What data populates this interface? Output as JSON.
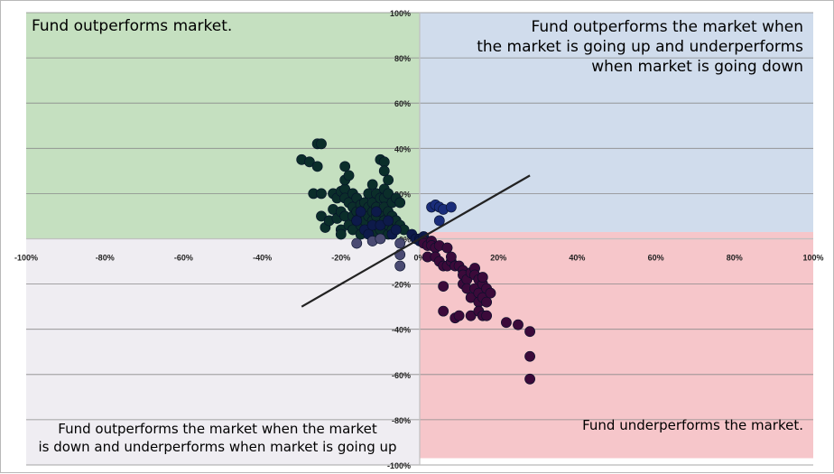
{
  "colors": {
    "top_left": "#c5e0c0",
    "top_right": "#d0dcec",
    "bottom_right": "#f6c6ca",
    "bottom_left": "#efedf2",
    "grid": "#8a8a8a",
    "axis": "#c0c0c0",
    "point_green": "#0b2e2a",
    "point_navy": "#0d1a4a",
    "point_blue": "#1a2d7a",
    "point_purple": "#3b0a3a",
    "point_gray": "#4a4a72",
    "trendline": "#222222"
  },
  "chart_data": {
    "type": "scatter",
    "title": "",
    "xlabel": "",
    "ylabel": "",
    "xlim": [
      -100,
      100
    ],
    "ylim": [
      -100,
      100
    ],
    "x_ticks": [
      -100,
      -80,
      -60,
      -40,
      -20,
      0,
      20,
      40,
      60,
      80,
      100
    ],
    "y_ticks": [
      100,
      80,
      60,
      40,
      20,
      0,
      -20,
      -40,
      -60,
      -80,
      -100
    ],
    "x_tick_labels": [
      "-100%",
      "-80%",
      "-60%",
      "-40%",
      "-20%",
      "0%",
      "20%",
      "40%",
      "60%",
      "80%",
      "100%"
    ],
    "y_tick_labels": [
      "100%",
      "80%",
      "60%",
      "40%",
      "20%",
      "0%",
      "-20%",
      "-40%",
      "-60%",
      "-80%",
      "-100%"
    ],
    "grid": true,
    "quadrants": [
      {
        "x": [
          -100,
          0
        ],
        "y": [
          0,
          100
        ],
        "color": "#c5e0c0",
        "label_lines": [
          "Fund outperforms market."
        ],
        "anchor": "start"
      },
      {
        "x": [
          0,
          100
        ],
        "y": [
          3,
          100
        ],
        "color": "#d0dcec",
        "label_lines": [
          "Fund outperforms the market when",
          "the market is going up and underperforms",
          "when market is going down"
        ],
        "anchor": "end"
      },
      {
        "x": [
          0,
          100
        ],
        "y": [
          -97,
          3
        ],
        "color": "#f6c6ca",
        "label_lines": [
          "Fund underperforms  the market."
        ],
        "anchor": "end"
      },
      {
        "x": [
          -100,
          0
        ],
        "y": [
          -100,
          0
        ],
        "color": "#efedf2",
        "label_lines": [
          "Fund outperforms  the market when the market",
          " is down and underperforms  when market is going up"
        ],
        "anchor": "middle"
      }
    ],
    "trendline": {
      "x": [
        -30,
        28
      ],
      "y": [
        -30,
        28
      ]
    },
    "series": [
      {
        "color": "#0b2e2a",
        "points": [
          [
            -30,
            35
          ],
          [
            -28,
            34
          ],
          [
            -27,
            20
          ],
          [
            -26,
            42
          ],
          [
            -26,
            32
          ],
          [
            -25,
            42
          ],
          [
            -25,
            20
          ],
          [
            -25,
            10
          ],
          [
            -24,
            5
          ],
          [
            -23,
            8
          ],
          [
            -22,
            20
          ],
          [
            -22,
            13
          ],
          [
            -21,
            18
          ],
          [
            -21,
            9
          ],
          [
            -20,
            21
          ],
          [
            -20,
            12
          ],
          [
            -20,
            4
          ],
          [
            -20,
            2
          ],
          [
            -19,
            22
          ],
          [
            -19,
            18
          ],
          [
            -19,
            10
          ],
          [
            -19,
            26
          ],
          [
            -19,
            32
          ],
          [
            -18,
            16
          ],
          [
            -18,
            28
          ],
          [
            -18,
            6
          ],
          [
            -17,
            20
          ],
          [
            -17,
            14
          ],
          [
            -17,
            10
          ],
          [
            -17,
            4
          ],
          [
            -16,
            18
          ],
          [
            -16,
            12
          ],
          [
            -16,
            8
          ],
          [
            -15,
            15
          ],
          [
            -15,
            10
          ],
          [
            -15,
            6
          ],
          [
            -15,
            2
          ],
          [
            -14,
            16
          ],
          [
            -14,
            12
          ],
          [
            -14,
            8
          ],
          [
            -13,
            20
          ],
          [
            -13,
            14
          ],
          [
            -13,
            10
          ],
          [
            -13,
            4
          ],
          [
            -12,
            24
          ],
          [
            -12,
            16
          ],
          [
            -12,
            12
          ],
          [
            -12,
            8
          ],
          [
            -12,
            2
          ],
          [
            -11,
            14
          ],
          [
            -11,
            10
          ],
          [
            -11,
            6
          ],
          [
            -11,
            20
          ],
          [
            -10,
            18
          ],
          [
            -10,
            12
          ],
          [
            -10,
            4
          ],
          [
            -10,
            35
          ],
          [
            -9,
            34
          ],
          [
            -9,
            30
          ],
          [
            -9,
            22
          ],
          [
            -9,
            18
          ],
          [
            -9,
            14
          ],
          [
            -9,
            8
          ],
          [
            -8,
            26
          ],
          [
            -8,
            20
          ],
          [
            -8,
            12
          ],
          [
            -8,
            6
          ],
          [
            -8,
            2
          ],
          [
            -7,
            16
          ],
          [
            -7,
            10
          ],
          [
            -7,
            4
          ],
          [
            -6,
            18
          ],
          [
            -6,
            8
          ],
          [
            -5,
            16
          ],
          [
            -5,
            6
          ],
          [
            -4,
            4
          ]
        ]
      },
      {
        "color": "#0d1a4a",
        "points": [
          [
            -16,
            8
          ],
          [
            -15,
            12
          ],
          [
            -14,
            4
          ],
          [
            -13,
            2
          ],
          [
            -12,
            6
          ],
          [
            -11,
            12
          ],
          [
            -10,
            6
          ],
          [
            -8,
            8
          ],
          [
            -7,
            2
          ],
          [
            -6,
            4
          ],
          [
            -2,
            2
          ],
          [
            -1,
            0
          ],
          [
            0,
            0
          ],
          [
            0,
            -1
          ],
          [
            1,
            1
          ]
        ]
      },
      {
        "color": "#1a2d7a",
        "points": [
          [
            3,
            14
          ],
          [
            4,
            15
          ],
          [
            5,
            14
          ],
          [
            6,
            13
          ],
          [
            8,
            14
          ],
          [
            5,
            8
          ]
        ]
      },
      {
        "color": "#3b0a3a",
        "points": [
          [
            1,
            -1
          ],
          [
            1,
            -2
          ],
          [
            2,
            -3
          ],
          [
            2,
            -8
          ],
          [
            3,
            -1
          ],
          [
            3,
            -3
          ],
          [
            4,
            -4
          ],
          [
            4,
            -8
          ],
          [
            5,
            -10
          ],
          [
            5,
            -3
          ],
          [
            6,
            -12
          ],
          [
            6,
            -21
          ],
          [
            6,
            -32
          ],
          [
            7,
            -12
          ],
          [
            7,
            -4
          ],
          [
            8,
            -10
          ],
          [
            8,
            -8
          ],
          [
            9,
            -12
          ],
          [
            9,
            -35
          ],
          [
            10,
            -34
          ],
          [
            10,
            -12
          ],
          [
            11,
            -14
          ],
          [
            11,
            -20
          ],
          [
            11,
            -16
          ],
          [
            12,
            -18
          ],
          [
            12,
            -22
          ],
          [
            13,
            -15
          ],
          [
            13,
            -26
          ],
          [
            13,
            -34
          ],
          [
            14,
            -13
          ],
          [
            14,
            -16
          ],
          [
            14,
            -22
          ],
          [
            15,
            -18
          ],
          [
            15,
            -24
          ],
          [
            15,
            -28
          ],
          [
            15,
            -32
          ],
          [
            16,
            -20
          ],
          [
            16,
            -26
          ],
          [
            16,
            -34
          ],
          [
            16,
            -17
          ],
          [
            17,
            -22
          ],
          [
            17,
            -28
          ],
          [
            17,
            -34
          ],
          [
            18,
            -24
          ],
          [
            22,
            -37
          ],
          [
            25,
            -38
          ],
          [
            28,
            -41
          ],
          [
            28,
            -52
          ],
          [
            28,
            -62
          ]
        ]
      },
      {
        "color": "#4a4a72",
        "points": [
          [
            -16,
            -2
          ],
          [
            -12,
            -1
          ],
          [
            -10,
            0
          ],
          [
            -5,
            -2
          ],
          [
            -5,
            -7
          ],
          [
            -5,
            -12
          ]
        ]
      }
    ]
  }
}
